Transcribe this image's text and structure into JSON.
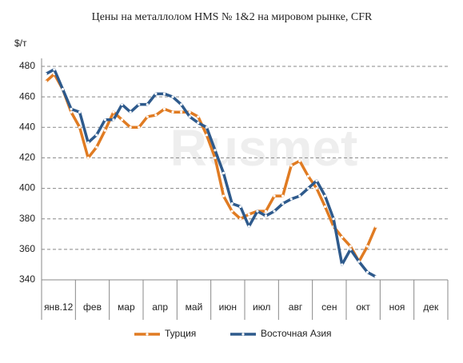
{
  "chart_data": {
    "type": "line",
    "title": "Цены на металлолом HMS № 1&2 на мировом рынке, CFR",
    "y_label": "$/т",
    "watermark": "Rusmet",
    "categories": [
      "янв.12",
      "фев",
      "мар",
      "апр",
      "май",
      "июн",
      "июл",
      "авг",
      "сен",
      "окт",
      "ноя",
      "дек"
    ],
    "x": [
      0.125,
      0.375,
      0.625,
      0.875,
      1.125,
      1.375,
      1.625,
      1.875,
      2.125,
      2.375,
      2.625,
      2.875,
      3.125,
      3.375,
      3.625,
      3.875,
      4.125,
      4.375,
      4.625,
      4.875,
      5.125,
      5.375,
      5.625,
      5.875,
      6.125,
      6.375,
      6.625,
      6.875,
      7.125,
      7.375,
      7.625,
      7.875,
      8.125,
      8.375,
      8.625,
      8.875,
      9.125,
      9.375,
      9.625,
      9.875
    ],
    "xlim": [
      0,
      12
    ],
    "ylim": [
      340,
      480
    ],
    "yticks": [
      340,
      360,
      380,
      400,
      420,
      440,
      460,
      480
    ],
    "grid": true,
    "legend": "bottom",
    "series": [
      {
        "name": "Турция",
        "color": "#e07b22",
        "values": [
          470,
          475,
          465,
          450,
          440,
          420,
          427,
          438,
          450,
          445,
          440,
          440,
          447,
          448,
          452,
          450,
          450,
          450,
          447,
          435,
          420,
          395,
          385,
          380,
          383,
          385,
          385,
          395,
          395,
          415,
          418,
          408,
          400,
          388,
          375,
          368,
          362,
          352,
          362,
          375
        ]
      },
      {
        "name": "Восточная Азия",
        "color": "#2e5a8c",
        "values": [
          475,
          478,
          465,
          452,
          450,
          430,
          435,
          445,
          445,
          455,
          450,
          455,
          455,
          462,
          462,
          460,
          455,
          447,
          443,
          440,
          425,
          410,
          390,
          388,
          375,
          385,
          382,
          385,
          390,
          393,
          395,
          400,
          405,
          395,
          380,
          350,
          360,
          352,
          345,
          342
        ]
      }
    ]
  }
}
